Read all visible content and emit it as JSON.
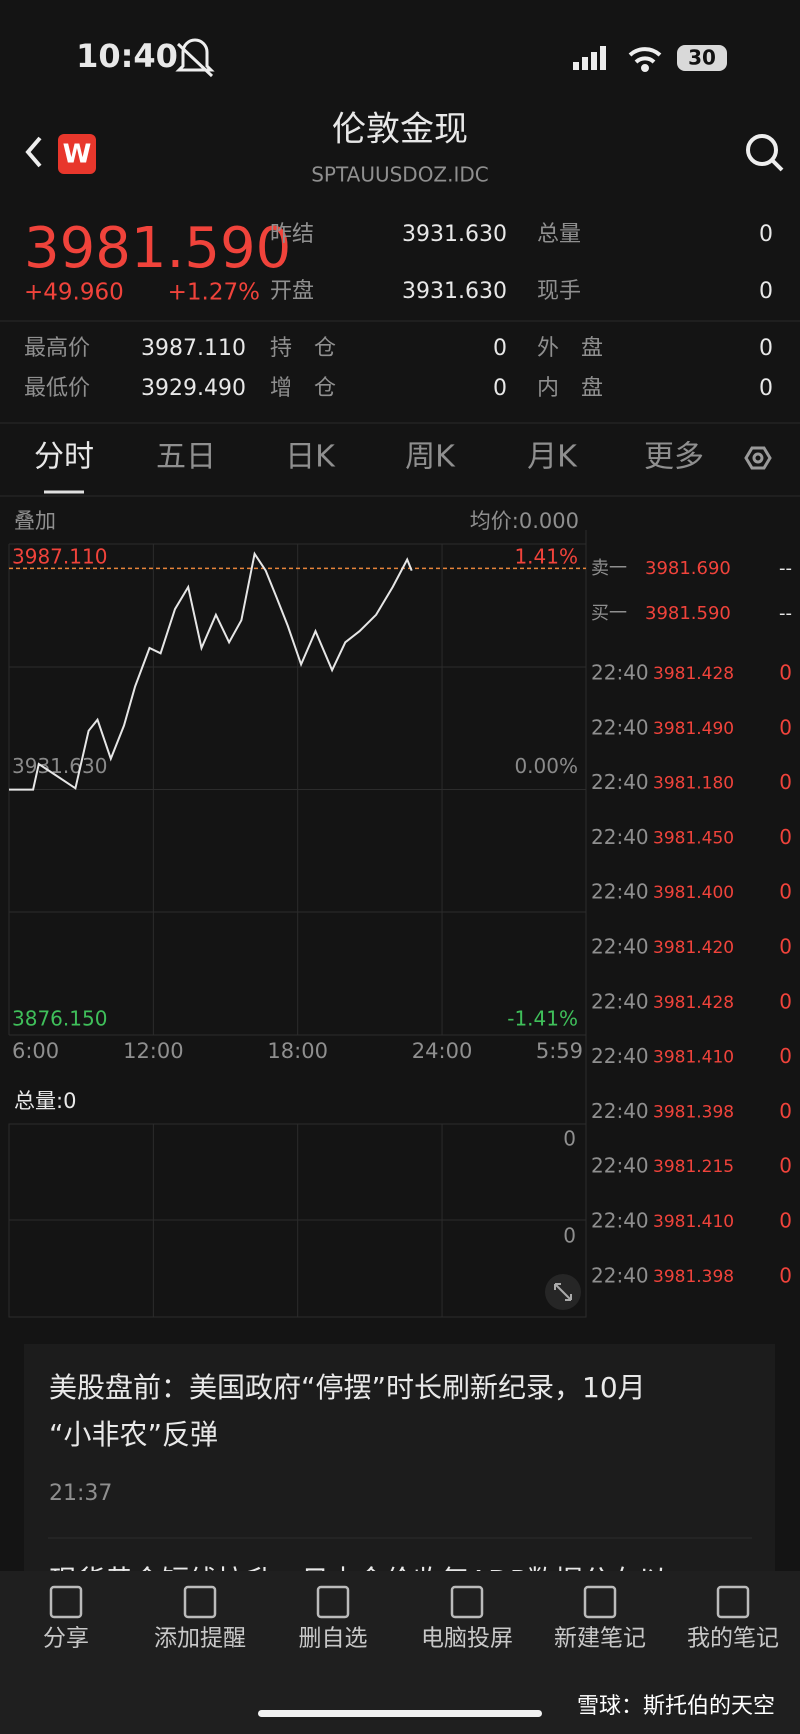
{
  "status_bar": {
    "time": "10:40",
    "battery": "30"
  },
  "header": {
    "logo": "W",
    "title": "伦敦金现",
    "subtitle": "SPTAUUSDOZ.IDC"
  },
  "quote": {
    "price": "3981.590",
    "change": "+49.960",
    "change_pct": "+1.27%",
    "rows": [
      [
        {
          "label": "昨结",
          "value": "3931.630"
        },
        {
          "label": "总量",
          "value": "0"
        }
      ],
      [
        {
          "label": "开盘",
          "value": "3931.630"
        },
        {
          "label": "现手",
          "value": "0"
        }
      ]
    ],
    "stats": [
      [
        {
          "label": "最高价",
          "value": "3987.110"
        },
        {
          "label": "持　仓",
          "value": "0"
        },
        {
          "label": "外　盘",
          "value": "0"
        }
      ],
      [
        {
          "label": "最低价",
          "value": "3929.490"
        },
        {
          "label": "增　仓",
          "value": "0"
        },
        {
          "label": "内　盘",
          "value": "0"
        }
      ]
    ]
  },
  "tabs": [
    "分时",
    "五日",
    "日K",
    "周K",
    "月K",
    "更多"
  ],
  "chart_data": {
    "type": "line",
    "overlay_label": "叠加",
    "avg_label": "均价:0.000",
    "x": [
      6,
      7,
      7.24,
      7.93,
      8.76,
      9.31,
      9.68,
      10.23,
      10.78,
      11.24,
      11.84,
      12.3,
      12.9,
      13.45,
      14.0,
      14.6,
      15.15,
      15.66,
      16.21,
      16.67,
      17.13,
      17.59,
      18.14,
      18.74,
      19.43,
      19.98,
      20.57,
      21.26,
      21.95,
      22.55,
      22.74
    ],
    "series": [
      {
        "color": "#e6e6e6",
        "values": [
          3931.6,
          3931.6,
          3937.4,
          3934.9,
          3931.9,
          3944.9,
          3947.4,
          3938.6,
          3946.1,
          3954.9,
          3963.6,
          3962.4,
          3972.4,
          3977.4,
          3963.6,
          3971.1,
          3964.9,
          3969.9,
          3984.9,
          3981.1,
          3974.9,
          3968.6,
          3959.9,
          3967.4,
          3958.6,
          3964.9,
          3967.4,
          3971.1,
          3977.4,
          3983.6,
          3981.1
        ]
      }
    ],
    "xlim": [
      6,
      29.9833
    ],
    "xticks": [
      {
        "value": 6,
        "label": "6:00"
      },
      {
        "value": 12,
        "label": "12:00"
      },
      {
        "value": 18,
        "label": "18:00"
      },
      {
        "value": 24,
        "label": "24:00"
      },
      {
        "value": 29.9833,
        "label": "5:59"
      }
    ],
    "ylim": [
      3876.15,
      3987.11
    ],
    "yticks": [
      {
        "value": 3876.15,
        "label": "3876.150"
      },
      {
        "value": 3931.63,
        "label": "3931.630"
      },
      {
        "value": 3987.11,
        "label": "3987.110"
      }
    ],
    "ytick_colors": [
      "#3fbf5a",
      "#8a8a8a",
      "#f0433b"
    ],
    "y2lim": [
      -1.41,
      1.41
    ],
    "y2ticks": [
      {
        "value": -1.41,
        "label": "-1.41%"
      },
      {
        "value": 0,
        "label": "0.00%"
      },
      {
        "value": 1.41,
        "label": "1.41%"
      }
    ],
    "current_line": 3981.59,
    "current_line_color": "#e8843a",
    "grid": true
  },
  "volume": {
    "label": "总量:0",
    "ticks": [
      "0",
      "0"
    ]
  },
  "order_book": [
    {
      "label": "卖一",
      "price": "3981.690",
      "volume": "--"
    },
    {
      "label": "买一",
      "price": "3981.590",
      "volume": "--"
    }
  ],
  "trades": [
    [
      "22:40",
      "3981.428",
      "0"
    ],
    [
      "22:40",
      "3981.490",
      "0"
    ],
    [
      "22:40",
      "3981.180",
      "0"
    ],
    [
      "22:40",
      "3981.450",
      "0"
    ],
    [
      "22:40",
      "3981.400",
      "0"
    ],
    [
      "22:40",
      "3981.420",
      "0"
    ],
    [
      "22:40",
      "3981.428",
      "0"
    ],
    [
      "22:40",
      "3981.410",
      "0"
    ],
    [
      "22:40",
      "3981.398",
      "0"
    ],
    [
      "22:40",
      "3981.215",
      "0"
    ],
    [
      "22:40",
      "3981.410",
      "0"
    ],
    [
      "22:40",
      "3981.398",
      "0"
    ]
  ],
  "news": [
    {
      "lines": [
        "美股盘前：美国政府“停摆”时长刷新纪录，10月",
        "“小非农”反弹"
      ],
      "time": "21:37"
    },
    {
      "lines": [
        "现货黄金短线拉升，日内金价收复ADP数据公布以"
      ]
    }
  ],
  "toolbar": [
    "分享",
    "添加提醒",
    "删自选",
    "电脑投屏",
    "新建笔记",
    "我的笔记"
  ],
  "watermark": "雪球：斯托伯的天空"
}
